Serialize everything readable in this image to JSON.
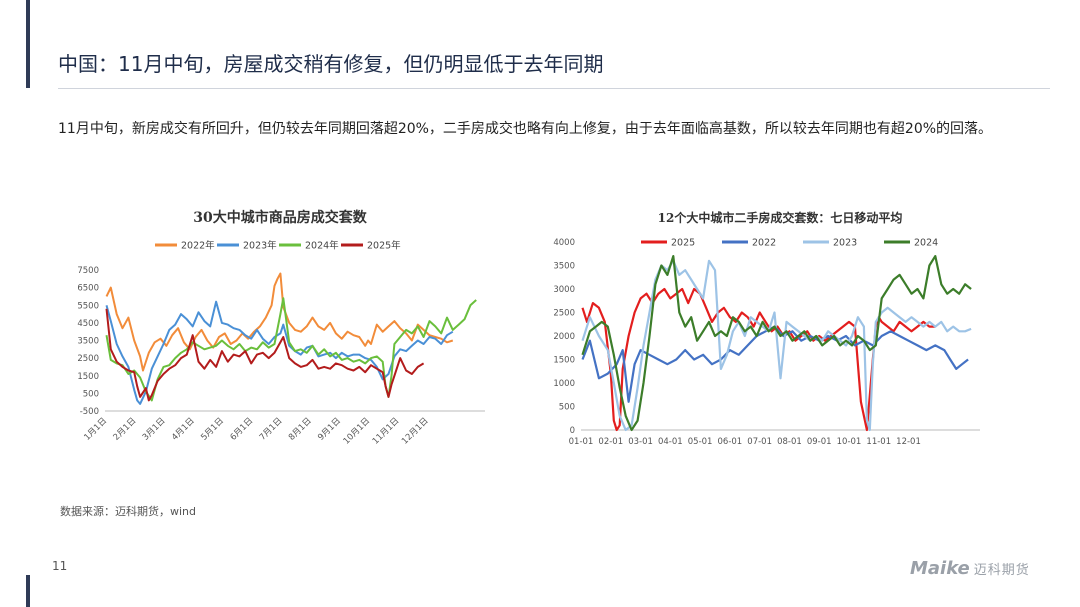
{
  "page": {
    "title": "中国：11月中旬，房屋成交稍有修复，但仍明显低于去年同期",
    "summary": "11月中旬，新房成交有所回升，但仍较去年同期回落超20%，二手房成交也略有向上修复，由于去年面临高基数，所以较去年同期也有超20%的回落。",
    "source": "数据来源：迈科期货，wind",
    "page_number": "11",
    "logo_mark": "Maike",
    "logo_text": "迈科期货"
  },
  "chart_data": [
    {
      "type": "line",
      "title": "30大中城市商品房成交套数",
      "ylim": [
        -500,
        7500
      ],
      "yticks": [
        -500,
        500,
        1500,
        2500,
        3500,
        4500,
        5500,
        6500,
        7500
      ],
      "xticks": [
        "1月1日",
        "2月1日",
        "3月1日",
        "4月1日",
        "5月1日",
        "6月1日",
        "7月1日",
        "8月1日",
        "9月1日",
        "10月1日",
        "11月1日",
        "12月1日"
      ],
      "xmax": 13,
      "grid": false,
      "legend": "top",
      "series": [
        {
          "name": "2022年",
          "color": "#f28c3a",
          "x": [
            0.05,
            0.2,
            0.4,
            0.6,
            0.8,
            1.0,
            1.2,
            1.3,
            1.5,
            1.7,
            1.9,
            2.1,
            2.3,
            2.5,
            2.7,
            2.9,
            3.1,
            3.3,
            3.5,
            3.7,
            3.9,
            4.1,
            4.3,
            4.5,
            4.7,
            4.9,
            5.1,
            5.3,
            5.5,
            5.7,
            5.8,
            5.9,
            6.0,
            6.1,
            6.3,
            6.5,
            6.7,
            6.9,
            7.1,
            7.3,
            7.5,
            7.7,
            7.9,
            8.1,
            8.3,
            8.5,
            8.7,
            8.9,
            9.0,
            9.1,
            9.3,
            9.5,
            9.7,
            9.9,
            10.1,
            10.3,
            10.5,
            10.7,
            10.9,
            11.1,
            11.3,
            11.5,
            11.7,
            11.9
          ],
          "y": [
            6000,
            6500,
            5000,
            4200,
            4800,
            3500,
            2600,
            1800,
            2800,
            3400,
            3600,
            3200,
            3800,
            4200,
            3400,
            3000,
            3700,
            4100,
            3500,
            3100,
            3700,
            3900,
            3300,
            3500,
            3900,
            3600,
            4000,
            4300,
            4800,
            5500,
            6600,
            7000,
            7300,
            5400,
            4500,
            4100,
            4000,
            4300,
            4800,
            4300,
            4100,
            4500,
            3900,
            3600,
            4000,
            3800,
            3700,
            3200,
            3500,
            3300,
            4400,
            4000,
            4300,
            4600,
            4200,
            3900,
            3500,
            4400,
            4100,
            3800,
            3700,
            3600,
            3400,
            3500
          ]
        },
        {
          "name": "2023年",
          "color": "#4a90d6",
          "x": [
            0.05,
            0.2,
            0.4,
            0.6,
            0.8,
            1.0,
            1.1,
            1.2,
            1.4,
            1.6,
            1.8,
            2.0,
            2.2,
            2.4,
            2.6,
            2.8,
            3.0,
            3.2,
            3.4,
            3.6,
            3.8,
            4.0,
            4.2,
            4.4,
            4.6,
            4.8,
            5.0,
            5.2,
            5.4,
            5.6,
            5.8,
            6.0,
            6.1,
            6.3,
            6.5,
            6.7,
            6.9,
            7.1,
            7.3,
            7.5,
            7.7,
            7.9,
            8.1,
            8.3,
            8.5,
            8.7,
            8.9,
            9.1,
            9.3,
            9.5,
            9.7,
            9.9,
            10.1,
            10.3,
            10.5,
            10.7,
            10.9,
            11.1,
            11.3,
            11.5,
            11.7,
            11.9
          ],
          "y": [
            5500,
            4600,
            3300,
            2600,
            2000,
            700,
            100,
            -100,
            600,
            1900,
            2600,
            3300,
            4100,
            4400,
            5000,
            4700,
            4300,
            5100,
            4600,
            4300,
            5700,
            4500,
            4400,
            4200,
            4100,
            3800,
            3600,
            4100,
            3600,
            3300,
            3700,
            3900,
            4400,
            3200,
            2900,
            2700,
            3100,
            3200,
            2600,
            2700,
            2800,
            2500,
            2800,
            2600,
            2700,
            2700,
            2500,
            2400,
            2000,
            1300,
            1600,
            2600,
            3000,
            2900,
            3200,
            3500,
            3300,
            3700,
            3600,
            3300,
            3800,
            4000
          ]
        },
        {
          "name": "2024年",
          "color": "#6abf3c",
          "x": [
            0.05,
            0.2,
            0.4,
            0.6,
            0.8,
            1.0,
            1.2,
            1.4,
            1.6,
            1.8,
            2.0,
            2.2,
            2.4,
            2.6,
            2.8,
            3.0,
            3.2,
            3.4,
            3.6,
            3.8,
            4.0,
            4.2,
            4.4,
            4.6,
            4.8,
            5.0,
            5.2,
            5.4,
            5.6,
            5.8,
            6.0,
            6.1,
            6.3,
            6.5,
            6.7,
            6.9,
            7.1,
            7.3,
            7.5,
            7.7,
            7.9,
            8.1,
            8.3,
            8.5,
            8.7,
            8.9,
            9.1,
            9.3,
            9.5,
            9.6,
            9.7,
            9.8,
            9.9,
            10.1,
            10.3,
            10.5,
            10.7,
            10.9,
            11.1,
            11.3,
            11.5,
            11.7,
            11.9,
            12.1,
            12.3,
            12.5,
            12.7
          ],
          "y": [
            3800,
            2400,
            2200,
            2100,
            1600,
            1800,
            1400,
            600,
            100,
            1300,
            2000,
            2100,
            2500,
            2800,
            3000,
            3400,
            3200,
            3000,
            3100,
            3200,
            3500,
            3200,
            3000,
            3300,
            2900,
            3100,
            3000,
            3400,
            3100,
            3300,
            5000,
            5900,
            3400,
            2900,
            3000,
            2800,
            3200,
            2700,
            3000,
            2600,
            2800,
            2400,
            2500,
            2300,
            2400,
            2200,
            2500,
            2600,
            2300,
            900,
            300,
            1500,
            3300,
            3700,
            4100,
            3900,
            4300,
            3700,
            4600,
            4300,
            3900,
            4800,
            4100,
            4400,
            4700,
            5500,
            5800
          ]
        },
        {
          "name": "2025年",
          "color": "#b31c1c",
          "x": [
            0.05,
            0.2,
            0.4,
            0.6,
            0.8,
            1.0,
            1.1,
            1.2,
            1.4,
            1.5,
            1.6,
            1.8,
            2.0,
            2.2,
            2.4,
            2.6,
            2.8,
            3.0,
            3.2,
            3.4,
            3.6,
            3.8,
            4.0,
            4.2,
            4.4,
            4.6,
            4.8,
            5.0,
            5.2,
            5.4,
            5.6,
            5.8,
            6.0,
            6.1,
            6.3,
            6.5,
            6.7,
            6.9,
            7.1,
            7.3,
            7.5,
            7.7,
            7.9,
            8.1,
            8.3,
            8.5,
            8.7,
            8.9,
            9.1,
            9.3,
            9.5,
            9.6,
            9.7,
            9.8,
            9.9,
            10.1,
            10.3,
            10.5,
            10.7,
            10.9
          ],
          "y": [
            5300,
            3000,
            2300,
            2000,
            1800,
            1700,
            900,
            300,
            800,
            100,
            400,
            1200,
            1600,
            1900,
            2100,
            2500,
            2700,
            3800,
            2300,
            1900,
            2400,
            2000,
            2900,
            2300,
            2700,
            2600,
            2900,
            2200,
            2700,
            2800,
            2500,
            2800,
            3400,
            3700,
            2500,
            2200,
            2000,
            2100,
            2400,
            1900,
            2000,
            1900,
            2200,
            2100,
            1900,
            1800,
            2000,
            1700,
            2100,
            1900,
            1700,
            900,
            300,
            1000,
            1500,
            2500,
            1800,
            1600,
            2000,
            2200
          ]
        }
      ]
    },
    {
      "type": "line",
      "title": "12个大中城市二手房成交套数：七日移动平均",
      "ylim": [
        0,
        4000
      ],
      "yticks": [
        0,
        500,
        1000,
        1500,
        2000,
        2500,
        3000,
        3500,
        4000
      ],
      "xticks": [
        "01-01",
        "02-01",
        "03-01",
        "04-01",
        "05-01",
        "06-01",
        "07-01",
        "08-01",
        "09-01",
        "10-01",
        "11-01",
        "12-01"
      ],
      "xmax": 13.4,
      "grid": false,
      "legend": "top",
      "series": [
        {
          "name": "2025",
          "color": "#e31e1e",
          "x": [
            0.05,
            0.2,
            0.4,
            0.6,
            0.8,
            1.0,
            1.1,
            1.2,
            1.3,
            1.4,
            1.6,
            1.8,
            2.0,
            2.2,
            2.4,
            2.6,
            2.8,
            3.0,
            3.2,
            3.4,
            3.6,
            3.8,
            4.0,
            4.2,
            4.4,
            4.6,
            4.8,
            5.0,
            5.2,
            5.4,
            5.6,
            5.8,
            6.0,
            6.2,
            6.4,
            6.6,
            6.8,
            7.0,
            7.2,
            7.4,
            7.6,
            7.8,
            8.0,
            8.2,
            8.4,
            8.6,
            8.8,
            9.0,
            9.2,
            9.4,
            9.6,
            9.8,
            9.9,
            10.0,
            10.1,
            10.3,
            10.5,
            10.7,
            10.9,
            11.1,
            11.3,
            11.5,
            11.7,
            11.9
          ],
          "y": [
            2600,
            2300,
            2700,
            2600,
            2300,
            1200,
            200,
            0,
            100,
            1300,
            2000,
            2500,
            2800,
            2900,
            2700,
            2900,
            3000,
            2800,
            2900,
            3000,
            2700,
            3000,
            2900,
            2600,
            2300,
            2500,
            2600,
            2400,
            2300,
            2500,
            2400,
            2200,
            2500,
            2300,
            2100,
            2200,
            2000,
            2100,
            1900,
            2000,
            2100,
            1900,
            2000,
            1900,
            2000,
            2100,
            2200,
            2300,
            2200,
            600,
            0,
            1500,
            2200,
            2400,
            2300,
            2200,
            2100,
            2300,
            2200,
            2100,
            2200,
            2300,
            2200,
            2200
          ]
        },
        {
          "name": "2022",
          "color": "#4472c4",
          "x": [
            0.05,
            0.3,
            0.6,
            0.9,
            1.2,
            1.4,
            1.6,
            1.8,
            2.0,
            2.3,
            2.6,
            2.9,
            3.2,
            3.5,
            3.8,
            4.1,
            4.4,
            4.7,
            5.0,
            5.3,
            5.6,
            5.9,
            6.2,
            6.5,
            6.8,
            7.1,
            7.4,
            7.7,
            8.0,
            8.3,
            8.6,
            8.9,
            9.2,
            9.5,
            9.8,
            10.1,
            10.4,
            10.7,
            11.0,
            11.3,
            11.6,
            11.9,
            12.2,
            12.4,
            12.6,
            12.8,
            13.0
          ],
          "y": [
            1500,
            1900,
            1100,
            1200,
            1400,
            1700,
            600,
            1400,
            1700,
            1600,
            1500,
            1400,
            1500,
            1700,
            1500,
            1600,
            1400,
            1500,
            1700,
            1600,
            1800,
            2000,
            2100,
            2200,
            2000,
            2100,
            1900,
            2000,
            1900,
            2000,
            1900,
            2000,
            1800,
            1900,
            1800,
            2000,
            2100,
            2000,
            1900,
            1800,
            1700,
            1800,
            1700,
            1500,
            1300,
            1400,
            1500
          ]
        },
        {
          "name": "2023",
          "color": "#9dc3e6",
          "x": [
            0.05,
            0.3,
            0.6,
            0.9,
            1.1,
            1.3,
            1.5,
            1.7,
            1.9,
            2.1,
            2.3,
            2.5,
            2.7,
            2.9,
            3.1,
            3.3,
            3.5,
            3.7,
            3.9,
            4.1,
            4.3,
            4.5,
            4.7,
            4.9,
            5.1,
            5.3,
            5.5,
            5.7,
            5.9,
            6.1,
            6.3,
            6.5,
            6.7,
            6.9,
            7.1,
            7.3,
            7.5,
            7.7,
            7.9,
            8.1,
            8.3,
            8.5,
            8.7,
            8.9,
            9.1,
            9.3,
            9.5,
            9.6,
            9.7,
            9.8,
            9.9,
            10.1,
            10.3,
            10.5,
            10.7,
            10.9,
            11.1,
            11.3,
            11.5,
            11.7,
            11.9,
            12.1,
            12.3,
            12.5,
            12.7,
            12.9,
            13.1
          ],
          "y": [
            1900,
            2400,
            2000,
            1700,
            1000,
            300,
            0,
            100,
            900,
            1800,
            2500,
            3200,
            3500,
            3400,
            3600,
            3300,
            3400,
            3200,
            3000,
            2800,
            3600,
            3400,
            1300,
            1600,
            2100,
            2300,
            2000,
            2400,
            2300,
            2200,
            2100,
            2500,
            1100,
            2300,
            2200,
            2100,
            2000,
            1900,
            2000,
            1900,
            2100,
            2000,
            1900,
            1800,
            2000,
            2400,
            2200,
            200,
            0,
            1400,
            2300,
            2500,
            2600,
            2500,
            2400,
            2300,
            2400,
            2300,
            2200,
            2300,
            2200,
            2300,
            2100,
            2200,
            2100,
            2100,
            2150
          ]
        },
        {
          "name": "2024",
          "color": "#3c7d2a",
          "x": [
            0.05,
            0.3,
            0.5,
            0.7,
            0.9,
            1.1,
            1.3,
            1.5,
            1.7,
            1.9,
            2.1,
            2.3,
            2.5,
            2.7,
            2.9,
            3.1,
            3.3,
            3.5,
            3.7,
            3.9,
            4.1,
            4.3,
            4.5,
            4.7,
            4.9,
            5.1,
            5.3,
            5.5,
            5.7,
            5.9,
            6.1,
            6.3,
            6.5,
            6.7,
            6.9,
            7.1,
            7.3,
            7.5,
            7.7,
            7.9,
            8.1,
            8.3,
            8.5,
            8.7,
            8.9,
            9.1,
            9.3,
            9.5,
            9.7,
            9.9,
            10.1,
            10.3,
            10.5,
            10.7,
            10.9,
            11.1,
            11.3,
            11.5,
            11.7,
            11.9,
            12.1,
            12.3,
            12.5,
            12.7,
            12.9,
            13.1
          ],
          "y": [
            1600,
            2100,
            2200,
            2300,
            2200,
            1600,
            900,
            300,
            0,
            200,
            1000,
            2000,
            3100,
            3500,
            3300,
            3700,
            2500,
            2200,
            2400,
            1900,
            2100,
            2300,
            2000,
            2100,
            2000,
            2400,
            2300,
            2100,
            2200,
            2000,
            2300,
            2100,
            2200,
            2000,
            2100,
            1900,
            2000,
            2100,
            1900,
            2000,
            1800,
            1900,
            2000,
            1800,
            1900,
            1800,
            2000,
            1900,
            1700,
            1800,
            2800,
            3000,
            3200,
            3300,
            3100,
            2900,
            3000,
            2800,
            3500,
            3700,
            3100,
            2900,
            3000,
            2900,
            3100,
            3000
          ]
        }
      ]
    }
  ]
}
